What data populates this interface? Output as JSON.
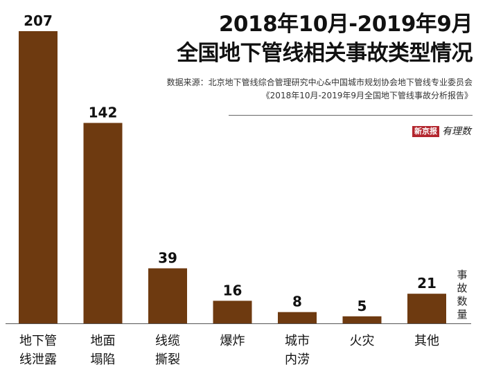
{
  "title_line1": "2018年10月-2019年9月",
  "title_line2": "全国地下管线相关事故类型情况",
  "source_line1": "数据来源：北京地下管线综合管理研究中心&中国城市规划协会地下管线专业委员会",
  "source_line2": "《2018年10月-2019年9月全国地下管线事故分析报告》",
  "brand_badge": "新京报",
  "brand_text": "有理数",
  "colors": {
    "bar": "#6e3a10",
    "axis": "#555555",
    "text": "#111111"
  },
  "chart_data": {
    "type": "bar",
    "unit_label": "事故数量",
    "categories": [
      [
        "地下管",
        "线泄露"
      ],
      [
        "地面",
        "塌陷"
      ],
      [
        "线缆",
        "撕裂"
      ],
      [
        "爆炸"
      ],
      [
        "城市",
        "内涝"
      ],
      [
        "火灾"
      ],
      [
        "其他"
      ]
    ],
    "values": [
      207,
      142,
      39,
      16,
      8,
      5,
      21
    ],
    "ylim": [
      0,
      207
    ]
  }
}
